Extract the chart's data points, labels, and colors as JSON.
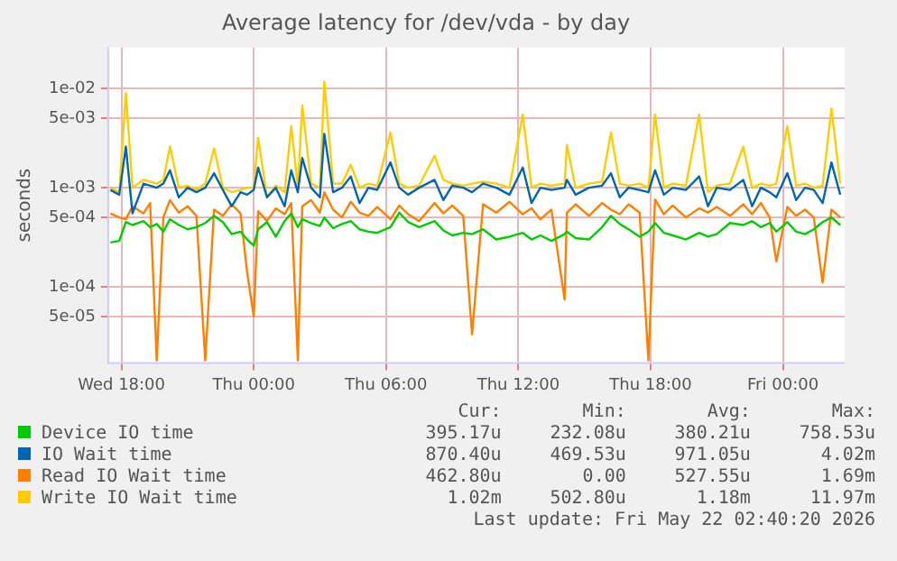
{
  "chart_data": {
    "type": "line",
    "title": "Average latency for /dev/vda - by day",
    "ylabel": "seconds",
    "log": "y",
    "grid": true,
    "legend": "bottom",
    "marker": "none",
    "line_style": "solid",
    "xlim": [
      "2026-05-20T17:24",
      "2026-05-22T02:48"
    ],
    "xticks": [
      {
        "value": "2026-05-20T18:00",
        "label": "Wed 18:00"
      },
      {
        "value": "2026-05-21T00:00",
        "label": "Thu 00:00"
      },
      {
        "value": "2026-05-21T06:00",
        "label": "Thu 06:00"
      },
      {
        "value": "2026-05-21T12:00",
        "label": "Thu 12:00"
      },
      {
        "value": "2026-05-21T18:00",
        "label": "Thu 18:00"
      },
      {
        "value": "2026-05-22T00:00",
        "label": "Fri 00:00"
      }
    ],
    "ylim": [
      1.7e-05,
      0.026
    ],
    "yticks": [
      {
        "value": 5e-05,
        "label": "5e-05"
      },
      {
        "value": 0.0001,
        "label": "1e-04"
      },
      {
        "value": 0.0005,
        "label": "5e-04"
      },
      {
        "value": 0.001,
        "label": "1e-03"
      },
      {
        "value": 0.005,
        "label": "5e-03"
      },
      {
        "value": 0.01,
        "label": "1e-02"
      }
    ],
    "x": [
      "2026-05-20T17:30",
      "2026-05-20T17:54",
      "2026-05-20T18:12",
      "2026-05-20T18:30",
      "2026-05-20T19:00",
      "2026-05-20T19:18",
      "2026-05-20T19:36",
      "2026-05-20T19:54",
      "2026-05-20T20:12",
      "2026-05-20T20:36",
      "2026-05-20T21:00",
      "2026-05-20T21:24",
      "2026-05-20T21:48",
      "2026-05-20T22:12",
      "2026-05-20T22:36",
      "2026-05-20T23:00",
      "2026-05-20T23:24",
      "2026-05-20T23:42",
      "2026-05-21T00:00",
      "2026-05-21T00:12",
      "2026-05-21T00:36",
      "2026-05-21T01:00",
      "2026-05-21T01:24",
      "2026-05-21T01:42",
      "2026-05-21T02:00",
      "2026-05-21T02:12",
      "2026-05-21T02:36",
      "2026-05-21T03:00",
      "2026-05-21T03:12",
      "2026-05-21T03:36",
      "2026-05-21T04:00",
      "2026-05-21T04:24",
      "2026-05-21T04:48",
      "2026-05-21T05:12",
      "2026-05-21T05:36",
      "2026-05-21T06:12",
      "2026-05-21T06:36",
      "2026-05-21T07:00",
      "2026-05-21T07:30",
      "2026-05-21T08:12",
      "2026-05-21T08:36",
      "2026-05-21T09:00",
      "2026-05-21T09:30",
      "2026-05-21T09:54",
      "2026-05-21T10:24",
      "2026-05-21T11:00",
      "2026-05-21T11:36",
      "2026-05-21T12:12",
      "2026-05-21T12:36",
      "2026-05-21T13:00",
      "2026-05-21T13:30",
      "2026-05-21T14:06",
      "2026-05-21T14:12",
      "2026-05-21T14:36",
      "2026-05-21T15:12",
      "2026-05-21T15:48",
      "2026-05-21T16:12",
      "2026-05-21T16:36",
      "2026-05-21T17:00",
      "2026-05-21T17:30",
      "2026-05-21T17:54",
      "2026-05-21T18:12",
      "2026-05-21T18:36",
      "2026-05-21T19:00",
      "2026-05-21T19:36",
      "2026-05-21T20:12",
      "2026-05-21T20:36",
      "2026-05-21T21:00",
      "2026-05-21T21:36",
      "2026-05-21T22:12",
      "2026-05-21T22:36",
      "2026-05-21T23:00",
      "2026-05-21T23:24",
      "2026-05-21T23:42",
      "2026-05-22T00:12",
      "2026-05-22T00:36",
      "2026-05-22T01:00",
      "2026-05-22T01:24",
      "2026-05-22T01:48",
      "2026-05-22T02:12",
      "2026-05-22T02:36"
    ],
    "series": [
      {
        "name": "Device IO time",
        "color": "#00cc00",
        "values": [
          0.00028,
          0.00029,
          0.00045,
          0.00042,
          0.00046,
          0.0004,
          0.00043,
          0.00036,
          0.00048,
          0.00042,
          0.00038,
          0.0004,
          0.00044,
          0.00052,
          0.00045,
          0.00034,
          0.00036,
          0.0003,
          0.00026,
          0.00038,
          0.00045,
          0.00032,
          0.00046,
          0.00055,
          0.0004,
          0.00048,
          0.00044,
          0.00041,
          0.0005,
          0.00039,
          0.00043,
          0.00046,
          0.00038,
          0.00036,
          0.00035,
          0.0004,
          0.00056,
          0.00045,
          0.0004,
          0.00046,
          0.00037,
          0.00033,
          0.00035,
          0.00034,
          0.00038,
          0.0003,
          0.00032,
          0.00035,
          0.0003,
          0.00033,
          0.00029,
          0.00034,
          0.00036,
          0.00031,
          0.0003,
          0.0004,
          0.00052,
          0.00043,
          0.00038,
          0.00032,
          0.00036,
          0.00044,
          0.00035,
          0.00033,
          0.0003,
          0.00035,
          0.00032,
          0.00034,
          0.00044,
          0.00042,
          0.00046,
          0.0004,
          0.00044,
          0.00036,
          0.00045,
          0.00036,
          0.00034,
          0.00038,
          0.00045,
          0.0005,
          0.00042
        ]
      },
      {
        "name": "IO Wait time",
        "color": "#0066b3",
        "values": [
          0.00095,
          0.00085,
          0.0026,
          0.00055,
          0.0011,
          0.00105,
          0.001,
          0.0011,
          0.0015,
          0.0008,
          0.001,
          0.0009,
          0.001,
          0.0014,
          0.00095,
          0.00065,
          0.0009,
          0.00085,
          0.00095,
          0.0016,
          0.0008,
          0.001,
          0.00065,
          0.0015,
          0.0009,
          0.002,
          0.001,
          0.0008,
          0.0035,
          0.0009,
          0.001,
          0.0013,
          0.0007,
          0.001,
          0.00095,
          0.0018,
          0.001,
          0.00085,
          0.001,
          0.0012,
          0.00075,
          0.00105,
          0.001,
          0.0009,
          0.0011,
          0.001,
          0.00085,
          0.0016,
          0.0007,
          0.001,
          0.00095,
          0.001,
          0.0012,
          0.00085,
          0.001,
          0.00105,
          0.0014,
          0.0008,
          0.001,
          0.00095,
          0.0009,
          0.0015,
          0.00085,
          0.001,
          0.00095,
          0.0013,
          0.00065,
          0.001,
          0.00095,
          0.0012,
          0.00065,
          0.001,
          0.0009,
          0.0008,
          0.0014,
          0.00075,
          0.001,
          0.00095,
          0.0007,
          0.0018,
          0.00085
        ]
      },
      {
        "name": "Read IO Wait time",
        "color": "#ff8000",
        "values": [
          0.00055,
          0.0005,
          0.00048,
          0.00065,
          0.00055,
          0.0007,
          1.8e-05,
          0.0005,
          0.00075,
          0.00056,
          0.00065,
          0.00052,
          1.8e-05,
          0.0006,
          0.00052,
          0.00068,
          0.00055,
          0.00014,
          5e-05,
          0.00058,
          0.00046,
          0.00062,
          0.00054,
          0.0007,
          1.8e-05,
          0.00065,
          0.00075,
          0.00056,
          0.0009,
          0.0006,
          0.0005,
          0.00072,
          0.00056,
          0.00052,
          0.00064,
          0.00048,
          0.00066,
          0.00054,
          0.00046,
          0.0007,
          0.00055,
          0.00066,
          0.00052,
          3.3e-05,
          0.00068,
          0.00056,
          0.00072,
          0.00054,
          0.00062,
          0.00048,
          0.0006,
          7.4e-05,
          0.00056,
          0.00068,
          0.00052,
          0.0007,
          0.0006,
          0.00054,
          0.00068,
          0.00056,
          1.8e-05,
          0.00076,
          0.00054,
          0.00066,
          0.0005,
          0.00062,
          0.00056,
          0.00064,
          0.00052,
          0.00068,
          0.00054,
          0.0007,
          0.0005,
          0.00018,
          0.00064,
          0.00052,
          0.0006,
          0.0005,
          0.00011,
          0.0006,
          0.0005
        ]
      },
      {
        "name": "Write IO Wait time",
        "color": "#ffcc00",
        "values": [
          0.001,
          0.0009,
          0.009,
          0.001,
          0.0012,
          0.00115,
          0.0011,
          0.0012,
          0.0026,
          0.001,
          0.00105,
          0.00095,
          0.0011,
          0.0025,
          0.001,
          0.0009,
          0.00095,
          0.001,
          0.001,
          0.0032,
          0.0008,
          0.00105,
          0.0009,
          0.0042,
          0.001,
          0.0068,
          0.0011,
          0.001,
          0.0118,
          0.0011,
          0.0011,
          0.0017,
          0.001,
          0.0011,
          0.00105,
          0.0036,
          0.0011,
          0.001,
          0.00105,
          0.0021,
          0.0012,
          0.0011,
          0.00105,
          0.0011,
          0.00115,
          0.0011,
          0.001,
          0.0055,
          0.001,
          0.0011,
          0.00105,
          0.0011,
          0.0027,
          0.001,
          0.0011,
          0.00115,
          0.0036,
          0.0011,
          0.00105,
          0.0011,
          0.001,
          0.0055,
          0.001,
          0.0011,
          0.00105,
          0.0055,
          0.0009,
          0.00105,
          0.0011,
          0.0026,
          0.001,
          0.0011,
          0.00105,
          0.0011,
          0.0042,
          0.00105,
          0.0011,
          0.001,
          0.00105,
          0.0063,
          0.0011
        ]
      }
    ],
    "annotations": [
      "Cur:",
      "Min:",
      "Avg:",
      "Max:",
      "395.17u",
      "232.08u",
      "380.21u",
      "758.53u",
      "870.40u",
      "469.53u",
      "971.05u",
      "4.02m",
      "462.80u",
      "0.00",
      "527.55u",
      "1.69m",
      "1.02m",
      "502.80u",
      "1.18m",
      "11.97m",
      "Last update: Fri May 22 02:40:20 2026"
    ]
  }
}
